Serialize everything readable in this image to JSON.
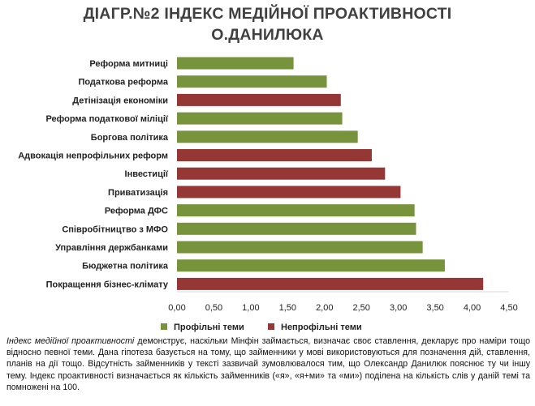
{
  "title": {
    "line1": "ДІАГР.№2 ІНДЕКС МЕДІЙНОЇ ПРОАКТИВНОСТІ",
    "line2": "О.ДАНИЛЮКА"
  },
  "caption": {
    "term": "Індекс медійної проактивності",
    "text": " демонструє, наскільки Мінфін займається, визначає своє ставлення, декларує про наміри тощо відносно певної теми. Дана гіпотеза базується на тому, що займенники у мові використовуються для позначення дій, ставлення, планів на дії тощо. Відсутність займенників у тексті зазвичай зумовлювалося тим, що Олександр Данилюк пояснює ту чи іншу тему. Індекс проактивності визначається як кількість займенників («я», «я+ми» та «ми») поділена на кількість слів у даній темі та помножені на 100."
  },
  "colors": {
    "profile": "#77933c",
    "nonprofile": "#953735"
  },
  "chart_data": {
    "type": "bar",
    "orientation": "horizontal",
    "categories": [
      "Реформа митниці",
      "Податкова реформа",
      "Детінізація економіки",
      "Реформа податкової міліції",
      "Боргова політика",
      "Адвокація непрофільних реформ",
      "Інвестиції",
      "Приватизація",
      "Реформа ДФС",
      "Співробітництво з МФО",
      "Управління держбанками",
      "Бюджетна політика",
      "Покращення бізнес-клімату"
    ],
    "values": [
      1.58,
      2.03,
      2.22,
      2.24,
      2.45,
      2.64,
      2.82,
      3.03,
      3.22,
      3.24,
      3.33,
      3.63,
      4.15
    ],
    "groups": [
      "profile",
      "profile",
      "nonprofile",
      "profile",
      "profile",
      "nonprofile",
      "nonprofile",
      "nonprofile",
      "profile",
      "profile",
      "profile",
      "profile",
      "nonprofile"
    ],
    "series": [
      {
        "key": "profile",
        "name": "Профільні теми"
      },
      {
        "key": "nonprofile",
        "name": "Непрофільні теми"
      }
    ],
    "xlim": [
      0,
      4.5
    ],
    "xticks": [
      "0,00",
      "0,50",
      "1,00",
      "1,50",
      "2,00",
      "2,50",
      "3,00",
      "3,50",
      "4,00",
      "4,50"
    ],
    "grid": false,
    "legend": "bottom"
  }
}
